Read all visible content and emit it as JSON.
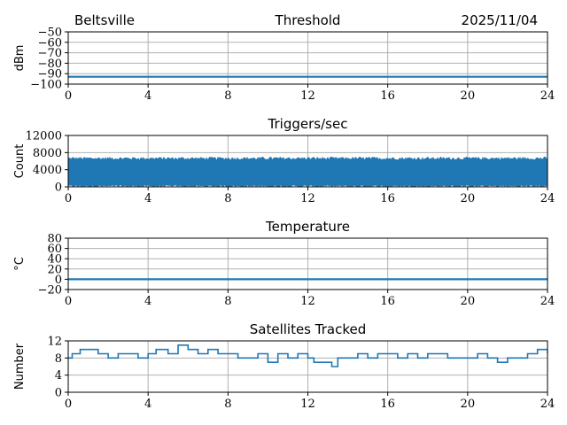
{
  "header": {
    "station": "Beltsville",
    "date": "2025/11/04"
  },
  "colors": {
    "series": "#1f77b4",
    "grid": "#b0b0b0",
    "axis": "#000000"
  },
  "chart_data": [
    {
      "id": "threshold",
      "type": "line",
      "title": "Threshold",
      "ylabel": "dBm",
      "xlim": [
        0,
        24
      ],
      "xticks": [
        0,
        4,
        8,
        12,
        16,
        20,
        24
      ],
      "ylim": [
        -100,
        -50
      ],
      "yticks": [
        -100,
        -90,
        -80,
        -70,
        -60,
        -50
      ],
      "yticklabels": [
        "−100",
        "−90",
        "−80",
        "−70",
        "−60",
        "−50"
      ],
      "grid": true,
      "series": [
        {
          "x": [
            0,
            24
          ],
          "y": [
            -93,
            -93
          ]
        }
      ]
    },
    {
      "id": "triggers",
      "type": "area",
      "title": "Triggers/sec",
      "ylabel": "Count",
      "xlim": [
        0,
        24
      ],
      "xticks": [
        0,
        4,
        8,
        12,
        16,
        20,
        24
      ],
      "ylim": [
        0,
        12000
      ],
      "yticks": [
        0,
        4000,
        8000,
        12000
      ],
      "yticklabels": [
        "0",
        "4000",
        "8000",
        "12000"
      ],
      "grid": true,
      "band": {
        "low": 400,
        "high": 6300,
        "high_max": 7000
      }
    },
    {
      "id": "temperature",
      "type": "line",
      "title": "Temperature",
      "ylabel": "°C",
      "xlim": [
        0,
        24
      ],
      "xticks": [
        0,
        4,
        8,
        12,
        16,
        20,
        24
      ],
      "ylim": [
        -20,
        80
      ],
      "yticks": [
        -20,
        0,
        20,
        40,
        60,
        80
      ],
      "yticklabels": [
        "−20",
        "0",
        "20",
        "40",
        "60",
        "80"
      ],
      "grid": true,
      "series": [
        {
          "x": [
            0,
            24
          ],
          "y": [
            0,
            0
          ]
        }
      ]
    },
    {
      "id": "satellites",
      "type": "line",
      "step": true,
      "title": "Satellites Tracked",
      "ylabel": "Number",
      "xlim": [
        0,
        24
      ],
      "xticks": [
        0,
        4,
        8,
        12,
        16,
        20,
        24
      ],
      "ylim": [
        0,
        12
      ],
      "yticks": [
        0,
        4,
        8,
        12
      ],
      "yticklabels": [
        "0",
        "4",
        "8",
        "12"
      ],
      "grid": true,
      "series": [
        {
          "x": [
            0,
            0.2,
            0.4,
            0.6,
            1.0,
            1.5,
            2.0,
            2.5,
            3.0,
            3.5,
            4.0,
            4.4,
            5.0,
            5.5,
            6.0,
            6.5,
            7.0,
            7.5,
            8.0,
            8.5,
            9.0,
            9.5,
            10.0,
            10.5,
            11.0,
            11.5,
            12.0,
            12.3,
            12.8,
            13.2,
            13.5,
            14.0,
            14.5,
            15.0,
            15.5,
            16.0,
            16.5,
            17.0,
            17.5,
            18.0,
            18.5,
            19.0,
            19.5,
            20.0,
            20.5,
            21.0,
            21.5,
            22.0,
            22.5,
            23.0,
            23.5,
            24.0
          ],
          "y": [
            8,
            9,
            9,
            10,
            10,
            9,
            8,
            9,
            9,
            8,
            9,
            10,
            9,
            11,
            10,
            9,
            10,
            9,
            9,
            8,
            8,
            9,
            7,
            9,
            8,
            9,
            8,
            7,
            7,
            6,
            8,
            8,
            9,
            8,
            9,
            9,
            8,
            9,
            8,
            9,
            9,
            8,
            8,
            8,
            9,
            8,
            7,
            8,
            8,
            9,
            10,
            9
          ]
        }
      ]
    }
  ]
}
